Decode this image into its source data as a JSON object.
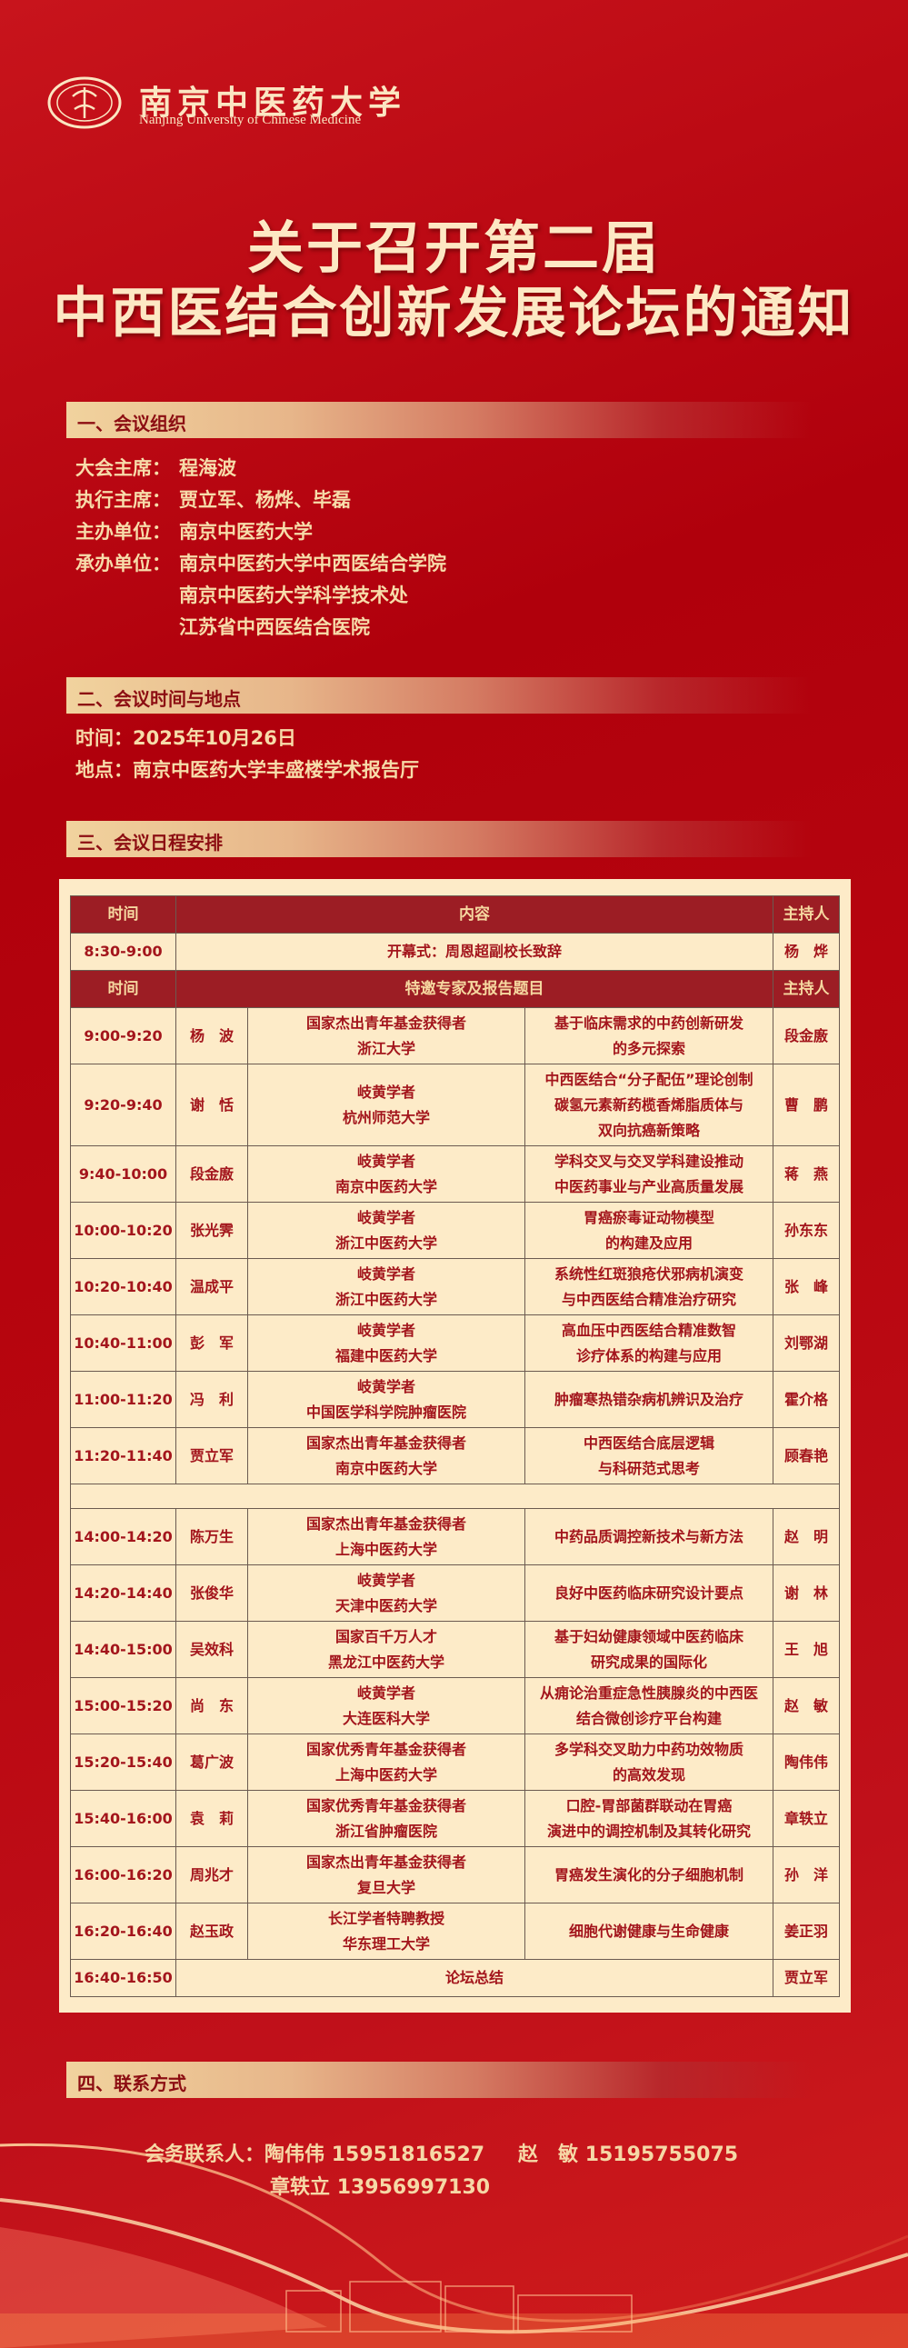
{
  "header": {
    "logo_cn": "南京中医药大学",
    "logo_en": "Nanjing University of Chinese Medicine"
  },
  "title": {
    "line1": "关于召开第二届",
    "line2": "中西医结合创新发展论坛的通知"
  },
  "section1": {
    "heading": "一、会议组织",
    "items": [
      {
        "label": "大会主席：",
        "value": "程海波"
      },
      {
        "label": "执行主席：",
        "value": "贾立军、杨烨、毕磊"
      },
      {
        "label": "主办单位：",
        "value": "南京中医药大学"
      },
      {
        "label": "承办单位：",
        "value": "南京中医药大学中西医结合学院"
      },
      {
        "label": "",
        "value": "南京中医药大学科学技术处"
      },
      {
        "label": "",
        "value": "江苏省中西医结合医院"
      }
    ]
  },
  "section2": {
    "heading": "二、会议时间与地点",
    "items": [
      {
        "label": "时间：",
        "value": "2025年10月26日"
      },
      {
        "label": "地点：",
        "value": "南京中医药大学丰盛楼学术报告厅"
      }
    ]
  },
  "section3": {
    "heading": "三、会议日程安排",
    "header1": [
      "时间",
      "内容",
      "主持人"
    ],
    "opening": {
      "time": "8:30-9:00",
      "content": "开幕式：周恩超副校长致辞",
      "host": "杨　烨"
    },
    "header2": [
      "时间",
      "特邀专家及报告题目",
      "主持人"
    ],
    "morning": [
      {
        "time": "9:00-9:20",
        "speaker": "杨　波",
        "org": [
          "国家杰出青年基金获得者",
          "浙江大学"
        ],
        "topic": [
          "基于临床需求的中药创新研发",
          "的多元探索"
        ],
        "host": "段金廒"
      },
      {
        "time": "9:20-9:40",
        "speaker": "谢　恬",
        "org": [
          "岐黄学者",
          "杭州师范大学"
        ],
        "topic": [
          "中西医结合“分子配伍”理论创制",
          "碳氢元素新药榄香烯脂质体与",
          "双向抗癌新策略"
        ],
        "host": "曹　鹏"
      },
      {
        "time": "9:40-10:00",
        "speaker": "段金廒",
        "org": [
          "岐黄学者",
          "南京中医药大学"
        ],
        "topic": [
          "学科交叉与交叉学科建设推动",
          "中医药事业与产业高质量发展"
        ],
        "host": "蒋　燕"
      },
      {
        "time": "10:00-10:20",
        "speaker": "张光霁",
        "org": [
          "岐黄学者",
          "浙江中医药大学"
        ],
        "topic": [
          "胃癌瘀毒证动物模型",
          "的构建及应用"
        ],
        "host": "孙东东"
      },
      {
        "time": "10:20-10:40",
        "speaker": "温成平",
        "org": [
          "岐黄学者",
          "浙江中医药大学"
        ],
        "topic": [
          "系统性红斑狼疮伏邪病机演变",
          "与中西医结合精准治疗研究"
        ],
        "host": "张　峰"
      },
      {
        "time": "10:40-11:00",
        "speaker": "彭　军",
        "org": [
          "岐黄学者",
          "福建中医药大学"
        ],
        "topic": [
          "高血压中西医结合精准数智",
          "诊疗体系的构建与应用"
        ],
        "host": "刘鄂湖"
      },
      {
        "time": "11:00-11:20",
        "speaker": "冯　利",
        "org": [
          "岐黄学者",
          "中国医学科学院肿瘤医院"
        ],
        "topic": [
          "肿瘤寒热错杂病机辨识及治疗"
        ],
        "host": "霍介格"
      },
      {
        "time": "11:20-11:40",
        "speaker": "贾立军",
        "org": [
          "国家杰出青年基金获得者",
          "南京中医药大学"
        ],
        "topic": [
          "中西医结合底层逻辑",
          "与科研范式思考"
        ],
        "host": "顾春艳"
      }
    ],
    "afternoon": [
      {
        "time": "14:00-14:20",
        "speaker": "陈万生",
        "org": [
          "国家杰出青年基金获得者",
          "上海中医药大学"
        ],
        "topic": [
          "中药品质调控新技术与新方法"
        ],
        "host": "赵　明"
      },
      {
        "time": "14:20-14:40",
        "speaker": "张俊华",
        "org": [
          "岐黄学者",
          "天津中医药大学"
        ],
        "topic": [
          "良好中医药临床研究设计要点"
        ],
        "host": "谢　林"
      },
      {
        "time": "14:40-15:00",
        "speaker": "吴效科",
        "org": [
          "国家百千万人才",
          "黑龙江中医药大学"
        ],
        "topic": [
          "基于妇幼健康领域中医药临床",
          "研究成果的国际化"
        ],
        "host": "王　旭"
      },
      {
        "time": "15:00-15:20",
        "speaker": "尚　东",
        "org": [
          "岐黄学者",
          "大连医科大学"
        ],
        "topic": [
          "从痈论治重症急性胰腺炎的中西医",
          "结合微创诊疗平台构建"
        ],
        "host": "赵　敏"
      },
      {
        "time": "15:20-15:40",
        "speaker": "葛广波",
        "org": [
          "国家优秀青年基金获得者",
          "上海中医药大学"
        ],
        "topic": [
          "多学科交叉助力中药功效物质",
          "的高效发现"
        ],
        "host": "陶伟伟"
      },
      {
        "time": "15:40-16:00",
        "speaker": "袁　莉",
        "org": [
          "国家优秀青年基金获得者",
          "浙江省肿瘤医院"
        ],
        "topic": [
          "口腔-胃部菌群联动在胃癌",
          "演进中的调控机制及其转化研究"
        ],
        "host": "章轶立"
      },
      {
        "time": "16:00-16:20",
        "speaker": "周兆才",
        "org": [
          "国家杰出青年基金获得者",
          "复旦大学"
        ],
        "topic": [
          "胃癌发生演化的分子细胞机制"
        ],
        "host": "孙　洋"
      },
      {
        "time": "16:20-16:40",
        "speaker": "赵玉政",
        "org": [
          "长江学者特聘教授",
          "华东理工大学"
        ],
        "topic": [
          "细胞代谢健康与生命健康"
        ],
        "host": "姜正羽"
      }
    ],
    "closing": {
      "time": "16:40-16:50",
      "content": "论坛总结",
      "host": "贾立军"
    }
  },
  "section4": {
    "heading": "四、联系方式",
    "label": "会务联系人：",
    "contacts": [
      {
        "name": "陶伟伟",
        "phone": "15951816527"
      },
      {
        "name": "赵　敏",
        "phone": "15195755075"
      },
      {
        "name": "章轶立",
        "phone": "13956997130"
      }
    ]
  },
  "footer": {
    "campus_sign": "南京中医药大学"
  },
  "colors": {
    "background": "#b5000c",
    "gold_text": "#f7dcaa",
    "panel": "#fdebc8",
    "table_header": "#9c1d24",
    "table_text": "#a3151c"
  }
}
